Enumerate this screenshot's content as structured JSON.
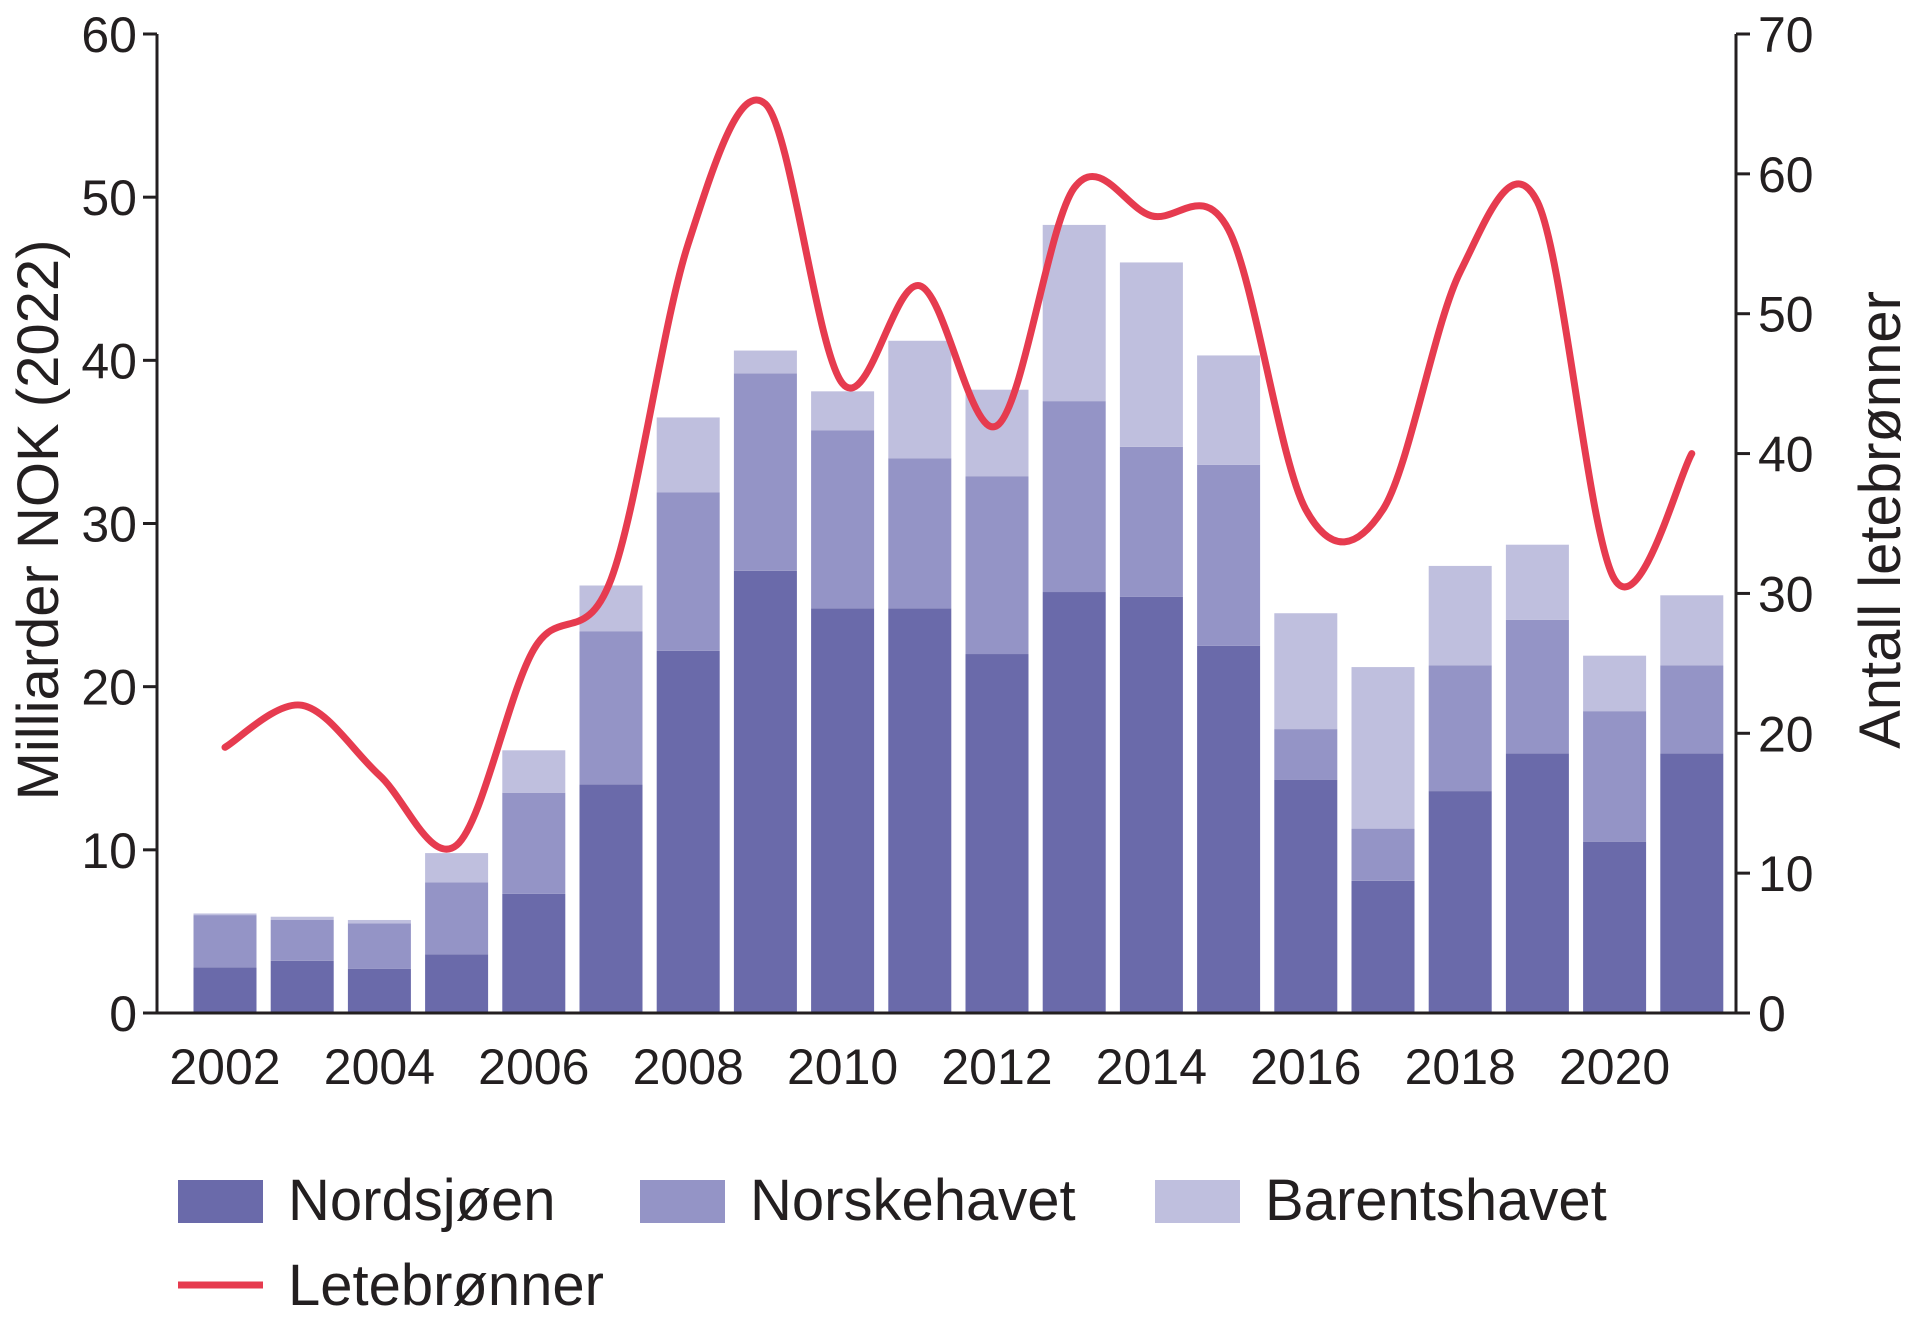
{
  "chart_data": {
    "type": "bar",
    "stacked": true,
    "categories": [
      "2002",
      "2003",
      "2004",
      "2005",
      "2006",
      "2007",
      "2008",
      "2009",
      "2010",
      "2011",
      "2012",
      "2013",
      "2014",
      "2015",
      "2016",
      "2017",
      "2018",
      "2019",
      "2020",
      "2021"
    ],
    "x_tick_labels": [
      "2002",
      "2004",
      "2006",
      "2008",
      "2010",
      "2012",
      "2014",
      "2016",
      "2018",
      "2020"
    ],
    "series": [
      {
        "name": "Nordsjøen",
        "color": "#6a6aaa",
        "values": [
          2.8,
          3.2,
          2.7,
          3.6,
          7.3,
          14.0,
          22.2,
          27.1,
          24.8,
          24.8,
          22.0,
          25.8,
          25.5,
          22.5,
          14.3,
          8.1,
          13.6,
          15.9,
          10.5,
          15.9
        ]
      },
      {
        "name": "Norskehavet",
        "color": "#9494c6",
        "values": [
          3.2,
          2.5,
          2.8,
          4.4,
          6.2,
          9.4,
          9.7,
          12.1,
          10.9,
          9.2,
          10.9,
          11.7,
          9.2,
          11.1,
          3.1,
          3.2,
          7.7,
          8.2,
          8.0,
          5.4
        ]
      },
      {
        "name": "Barentshavet",
        "color": "#bfbfde",
        "values": [
          0.1,
          0.2,
          0.2,
          1.8,
          2.6,
          2.8,
          4.6,
          1.4,
          2.4,
          7.2,
          5.3,
          10.8,
          11.3,
          6.7,
          7.1,
          9.9,
          6.1,
          4.6,
          3.4,
          4.3
        ]
      }
    ],
    "line_series": {
      "name": "Letebrønner",
      "axis": "right",
      "color": "#e63b4f",
      "values": [
        19,
        22,
        17,
        12,
        26,
        31,
        55,
        65,
        45,
        52,
        42,
        59,
        57,
        56,
        36,
        36,
        53,
        58,
        31,
        40
      ]
    },
    "ylabel": "Milliarder NOK (2022)",
    "y2label": "Antall letebrønner",
    "ylim": [
      0,
      60
    ],
    "y2lim": [
      0,
      70
    ],
    "yticks": [
      "0",
      "10",
      "20",
      "30",
      "40",
      "50",
      "60"
    ],
    "y2ticks": [
      "0",
      "10",
      "20",
      "30",
      "40",
      "50",
      "60",
      "70"
    ],
    "grid": false,
    "legend_position": "bottom"
  }
}
